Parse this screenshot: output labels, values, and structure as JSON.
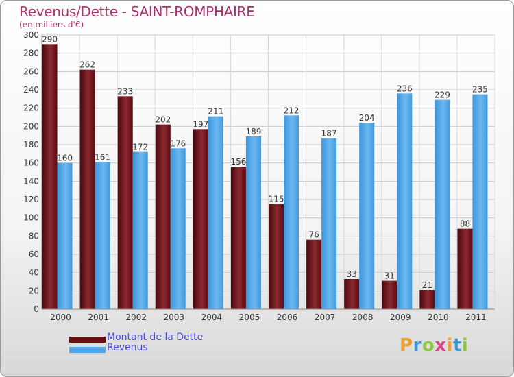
{
  "title": "Revenus/Dette - SAINT-ROMPHAIRE",
  "subtitle": "(en milliers d'€)",
  "logo": {
    "text": "Proxiti",
    "letters": [
      "P",
      "r",
      "o",
      "x",
      "i",
      "t",
      "i"
    ],
    "colors": [
      "#f0a030",
      "#3a9ad9",
      "#8ec63f",
      "#e0428a",
      "#f0a030",
      "#3a9ad9",
      "#8ec63f"
    ]
  },
  "colors": {
    "debt": "#6b0f14",
    "revenue": "#4da6e8"
  },
  "chart_data": {
    "type": "bar",
    "title": "Revenus/Dette - SAINT-ROMPHAIRE",
    "subtitle": "(en milliers d'€)",
    "categories": [
      "2000",
      "2001",
      "2002",
      "2003",
      "2004",
      "2005",
      "2006",
      "2007",
      "2008",
      "2009",
      "2010",
      "2011"
    ],
    "series": [
      {
        "name": "Montant de la Dette",
        "color": "#6b0f14",
        "values": [
          290,
          262,
          233,
          202,
          197,
          156,
          115,
          76,
          33,
          31,
          21,
          88
        ]
      },
      {
        "name": "Revenus",
        "color": "#4da6e8",
        "values": [
          160,
          161,
          172,
          176,
          211,
          189,
          212,
          187,
          204,
          236,
          229,
          235
        ]
      }
    ],
    "ylim": [
      0,
      300
    ],
    "yticks": [
      0,
      20,
      40,
      60,
      80,
      100,
      120,
      140,
      160,
      180,
      200,
      220,
      240,
      260,
      280,
      300
    ],
    "grid": true,
    "legend": "bottom-left"
  }
}
